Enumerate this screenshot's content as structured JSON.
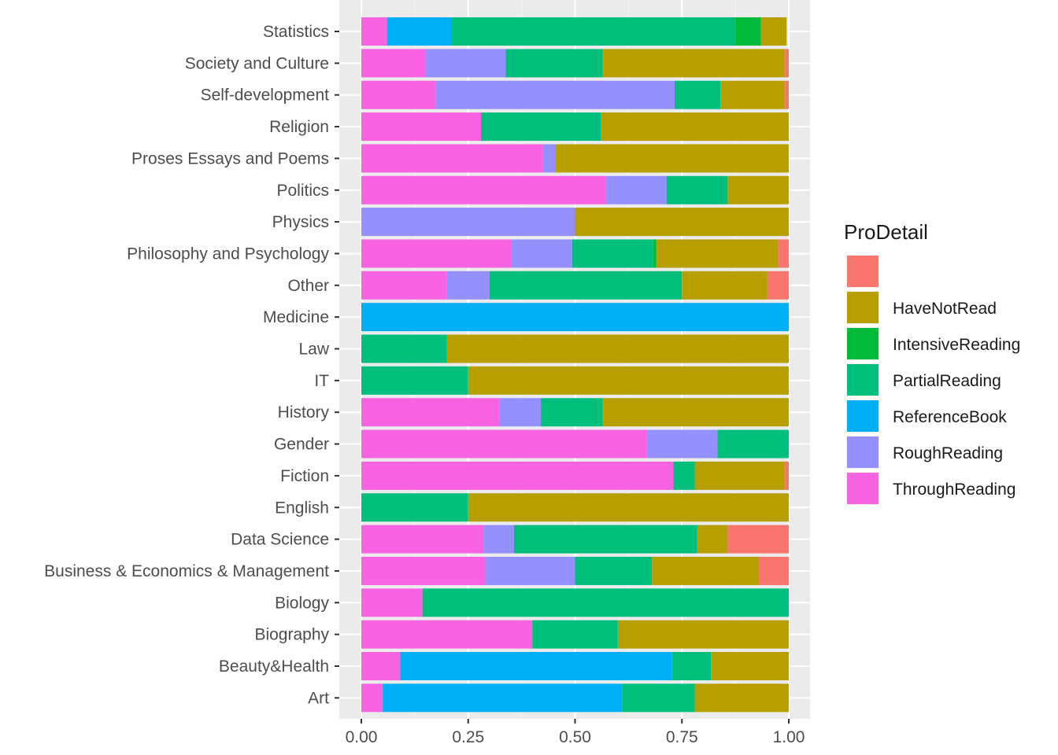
{
  "chart_data": {
    "type": "bar",
    "orientation": "horizontal",
    "stacked": true,
    "categories": [
      "Statistics",
      "Society and Culture",
      "Self-development",
      "Religion",
      "Proses Essays and Poems",
      "Politics",
      "Physics",
      "Philosophy and Psychology",
      "Other",
      "Medicine",
      "Law",
      "IT",
      "History",
      "Gender",
      "Fiction",
      "English",
      "Data Science",
      "Business & Economics & Management",
      "Biology",
      "Biography",
      "Beauty&Health",
      "Art"
    ],
    "stack_order": [
      "ThroughReading",
      "ReferenceBook",
      "RoughReading",
      "PartialReading",
      "IntensiveReading",
      "HaveNotRead",
      ""
    ],
    "series": [
      {
        "name": "",
        "color": "#F8766D",
        "values": [
          0,
          0.01,
          0.01,
          0,
          0,
          0,
          0,
          0.025,
          0.05,
          0,
          0,
          0,
          0,
          0,
          0.01,
          0,
          0.143,
          0.07,
          0,
          0,
          0,
          0
        ]
      },
      {
        "name": "HaveNotRead",
        "color": "#B79F00",
        "values": [
          0.06,
          0.425,
          0.15,
          0.44,
          0.545,
          0.143,
          0.5,
          0.285,
          0.2,
          0,
          0.8,
          0.75,
          0.435,
          0,
          0.21,
          0.75,
          0.071,
          0.25,
          0,
          0.4,
          0.182,
          0.22
        ]
      },
      {
        "name": "IntensiveReading",
        "color": "#00BA38",
        "values": [
          0.06,
          0,
          0,
          0,
          0,
          0,
          0,
          0.007,
          0,
          0,
          0,
          0,
          0,
          0,
          0,
          0,
          0,
          0,
          0,
          0,
          0,
          0
        ]
      },
      {
        "name": "PartialReading",
        "color": "#00BF7D",
        "values": [
          0.665,
          0.227,
          0.107,
          0.28,
          0,
          0.143,
          0,
          0.19,
          0.45,
          0,
          0.2,
          0.25,
          0.145,
          0.167,
          0.05,
          0.25,
          0.429,
          0.18,
          0.857,
          0.2,
          0.091,
          0.17
        ]
      },
      {
        "name": "ReferenceBook",
        "color": "#00B0F6",
        "values": [
          0.15,
          0,
          0,
          0,
          0,
          0,
          0,
          0,
          0,
          1.0,
          0,
          0,
          0,
          0,
          0,
          0,
          0,
          0,
          0,
          0,
          0.636,
          0.56
        ]
      },
      {
        "name": "RoughReading",
        "color": "#9590FF",
        "values": [
          0,
          0.188,
          0.56,
          0,
          0.03,
          0.143,
          0.5,
          0.143,
          0.1,
          0,
          0,
          0,
          0.097,
          0.166,
          0,
          0,
          0.071,
          0.21,
          0,
          0,
          0,
          0
        ]
      },
      {
        "name": "ThroughReading",
        "color": "#F763E0",
        "values": [
          0.06,
          0.15,
          0.173,
          0.28,
          0.425,
          0.571,
          0,
          0.35,
          0.2,
          0,
          0,
          0,
          0.323,
          0.667,
          0.73,
          0,
          0.286,
          0.29,
          0.143,
          0.4,
          0.091,
          0.05
        ]
      }
    ],
    "xlim": [
      0,
      1
    ],
    "xticks": [
      "0.00",
      "0.25",
      "0.50",
      "0.75",
      "1.00"
    ],
    "xlabel": "",
    "ylabel": "",
    "grid": true,
    "legend": {
      "title": "ProDetail",
      "placement": "right",
      "items": [
        "",
        "HaveNotRead",
        "IntensiveReading",
        "PartialReading",
        "ReferenceBook",
        "RoughReading",
        "ThroughReading"
      ]
    }
  }
}
